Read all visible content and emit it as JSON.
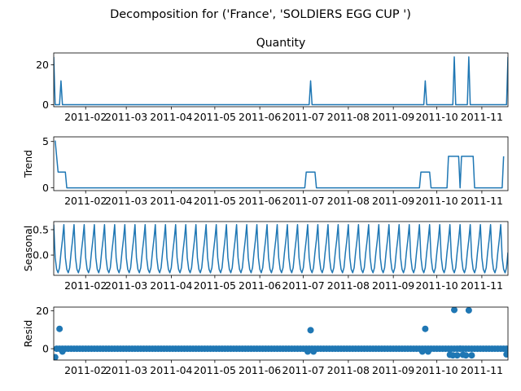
{
  "figure": {
    "suptitle": "Decomposition for ('France', 'SOLDIERS EGG CUP ')"
  },
  "chart_data": [
    {
      "type": "line",
      "panel": "observed",
      "title": "Quantity",
      "ylabel": "",
      "ylim": [
        -1,
        26
      ],
      "yticks": [
        0,
        20
      ],
      "color": "#1f77b4",
      "x_tick_labels": [
        "2011-02",
        "2011-03",
        "2011-04",
        "2011-05",
        "2011-06",
        "2011-07",
        "2011-08",
        "2011-09",
        "2011-10",
        "2011-11"
      ],
      "points": [
        {
          "x": "2011-01-10",
          "y": 24
        },
        {
          "x": "2011-01-11",
          "y": 0
        },
        {
          "x": "2011-01-14",
          "y": 0
        },
        {
          "x": "2011-01-15",
          "y": 12
        },
        {
          "x": "2011-01-16",
          "y": 0
        },
        {
          "x": "2011-07-05",
          "y": 0
        },
        {
          "x": "2011-07-06",
          "y": 12
        },
        {
          "x": "2011-07-07",
          "y": 0
        },
        {
          "x": "2011-09-22",
          "y": 0
        },
        {
          "x": "2011-09-23",
          "y": 12
        },
        {
          "x": "2011-09-24",
          "y": 0
        },
        {
          "x": "2011-10-12",
          "y": 0
        },
        {
          "x": "2011-10-13",
          "y": 24
        },
        {
          "x": "2011-10-14",
          "y": 0
        },
        {
          "x": "2011-10-22",
          "y": 0
        },
        {
          "x": "2011-10-23",
          "y": 24
        },
        {
          "x": "2011-10-24",
          "y": 0
        },
        {
          "x": "2011-11-18",
          "y": 0
        },
        {
          "x": "2011-11-19",
          "y": 24
        }
      ]
    },
    {
      "type": "line",
      "panel": "trend",
      "title": "",
      "ylabel": "Trend",
      "ylim": [
        -0.3,
        5.5
      ],
      "yticks": [
        0,
        5
      ],
      "color": "#1f77b4",
      "x_tick_labels": [
        "2011-02",
        "2011-03",
        "2011-04",
        "2011-05",
        "2011-06",
        "2011-07",
        "2011-08",
        "2011-09",
        "2011-10",
        "2011-11"
      ],
      "points": [
        {
          "x": "2011-01-11",
          "y": 5.1
        },
        {
          "x": "2011-01-13",
          "y": 1.7
        },
        {
          "x": "2011-01-18",
          "y": 1.7
        },
        {
          "x": "2011-01-19",
          "y": 0
        },
        {
          "x": "2011-07-02",
          "y": 0
        },
        {
          "x": "2011-07-03",
          "y": 1.7
        },
        {
          "x": "2011-07-09",
          "y": 1.7
        },
        {
          "x": "2011-07-10",
          "y": 0
        },
        {
          "x": "2011-09-19",
          "y": 0
        },
        {
          "x": "2011-09-20",
          "y": 1.7
        },
        {
          "x": "2011-09-26",
          "y": 1.7
        },
        {
          "x": "2011-09-27",
          "y": 0
        },
        {
          "x": "2011-10-08",
          "y": 0
        },
        {
          "x": "2011-10-09",
          "y": 3.4
        },
        {
          "x": "2011-10-16",
          "y": 3.4
        },
        {
          "x": "2011-10-17",
          "y": 0
        },
        {
          "x": "2011-10-18",
          "y": 3.4
        },
        {
          "x": "2011-10-26",
          "y": 3.4
        },
        {
          "x": "2011-10-27",
          "y": 0
        },
        {
          "x": "2011-11-15",
          "y": 0
        },
        {
          "x": "2011-11-16",
          "y": 3.4
        }
      ]
    },
    {
      "type": "line",
      "panel": "seasonal",
      "title": "",
      "ylabel": "Seasonal",
      "ylim": [
        -0.4,
        0.66
      ],
      "yticks": [
        -0.0,
        0.5
      ],
      "ytick_labels": [
        "0.0",
        "0.5"
      ],
      "color": "#1f77b4",
      "x_tick_labels": [
        "2011-02",
        "2011-03",
        "2011-04",
        "2011-05",
        "2011-06",
        "2011-07",
        "2011-08",
        "2011-09",
        "2011-10",
        "2011-11"
      ],
      "seasonal_pattern": {
        "start": "2011-01-10",
        "end": "2011-11-19",
        "period_days": 7,
        "values": [
          0.6,
          -0.05,
          -0.28,
          -0.35,
          -0.25,
          0.05,
          0.3
        ]
      }
    },
    {
      "type": "scatter",
      "panel": "resid",
      "title": "",
      "ylabel": "Resid",
      "ylim": [
        -6,
        22
      ],
      "yticks": [
        0,
        20
      ],
      "color": "#1f77b4",
      "x_tick_labels": [
        "2011-02",
        "2011-03",
        "2011-04",
        "2011-05",
        "2011-06",
        "2011-07",
        "2011-08",
        "2011-09",
        "2011-10",
        "2011-11"
      ],
      "baseline": {
        "start": "2011-01-12",
        "end": "2011-11-18",
        "step_days": 2,
        "y": 0
      },
      "points": [
        {
          "x": "2011-01-11",
          "y": -4.5
        },
        {
          "x": "2011-01-14",
          "y": 10.5
        },
        {
          "x": "2011-01-16",
          "y": -1.5
        },
        {
          "x": "2011-07-04",
          "y": -1.5
        },
        {
          "x": "2011-07-06",
          "y": 9.8
        },
        {
          "x": "2011-07-08",
          "y": -1.5
        },
        {
          "x": "2011-09-21",
          "y": -1.5
        },
        {
          "x": "2011-09-23",
          "y": 10.5
        },
        {
          "x": "2011-09-25",
          "y": -1.5
        },
        {
          "x": "2011-10-10",
          "y": -3.2
        },
        {
          "x": "2011-10-12",
          "y": -3.5
        },
        {
          "x": "2011-10-13",
          "y": 20.5
        },
        {
          "x": "2011-10-15",
          "y": -3.5
        },
        {
          "x": "2011-10-17",
          "y": 0
        },
        {
          "x": "2011-10-19",
          "y": -3.2
        },
        {
          "x": "2011-10-21",
          "y": -3.5
        },
        {
          "x": "2011-10-23",
          "y": 20.3
        },
        {
          "x": "2011-10-25",
          "y": -3.5
        },
        {
          "x": "2011-11-18",
          "y": -3.0
        }
      ]
    }
  ]
}
